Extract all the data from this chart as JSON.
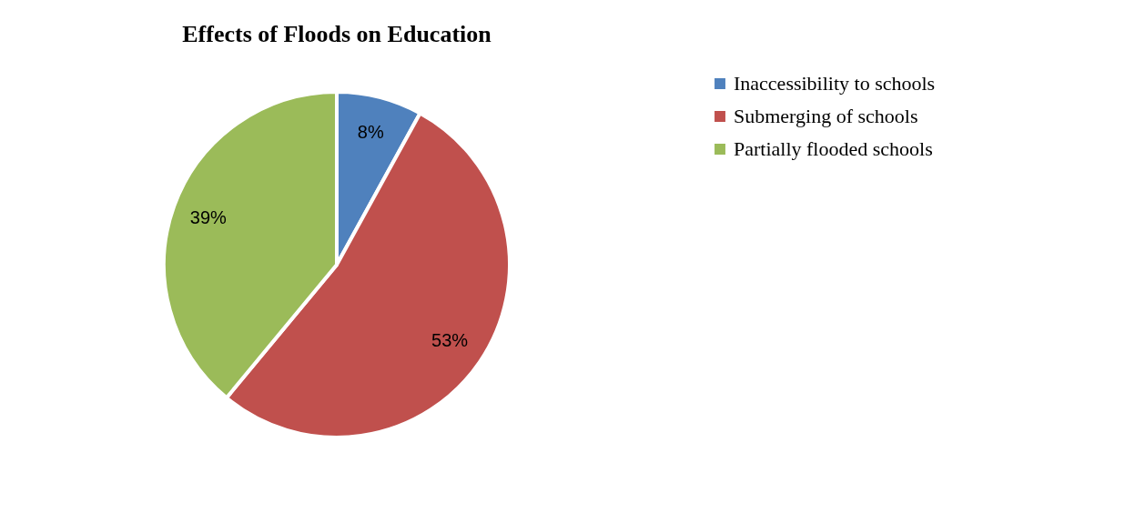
{
  "chart_data": {
    "type": "pie",
    "title": "Effects of Floods on Education",
    "categories": [
      "Inaccessibility to schools",
      "Submerging of schools",
      "Partially flooded schools"
    ],
    "values": [
      8,
      53,
      39
    ],
    "colors": [
      "#4f81bd",
      "#c0504d",
      "#9bbb59"
    ],
    "value_labels": [
      "8%",
      "53%",
      "39%"
    ],
    "legend": "right"
  }
}
